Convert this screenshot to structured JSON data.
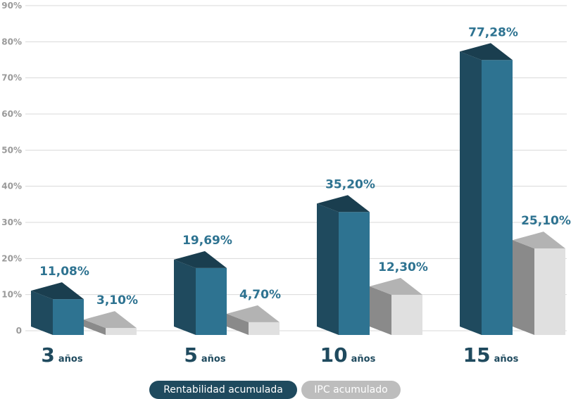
{
  "chart_data": {
    "type": "bar",
    "categories": [
      {
        "number": "3",
        "unit": "años"
      },
      {
        "number": "5",
        "unit": "años"
      },
      {
        "number": "10",
        "unit": "años"
      },
      {
        "number": "15",
        "unit": "años"
      }
    ],
    "series": [
      {
        "name": "Rentabilidad acumulada",
        "values": [
          11.08,
          19.69,
          35.2,
          77.28
        ],
        "labels": [
          "11,08%",
          "19,69%",
          "35,20%",
          "77,28%"
        ]
      },
      {
        "name": "IPC acumulado",
        "values": [
          3.1,
          4.7,
          12.3,
          25.1
        ],
        "labels": [
          "3,10%",
          "4,70%",
          "12,30%",
          "25,10%"
        ]
      }
    ],
    "yticks": [
      "0",
      "10%",
      "20%",
      "30%",
      "40%",
      "50%",
      "60%",
      "70%",
      "80%",
      "90%"
    ],
    "ylim": [
      0,
      90
    ],
    "grid": true,
    "legend_position": "bottom-center",
    "colors": {
      "series0_front": "#2e7391",
      "series0_side": "#1f4a5e",
      "series0_top": "#1a3e4f",
      "series1_front": "#e0e0e0",
      "series1_side": "#8a8a8a",
      "series1_top": "#b3b3b3"
    }
  }
}
